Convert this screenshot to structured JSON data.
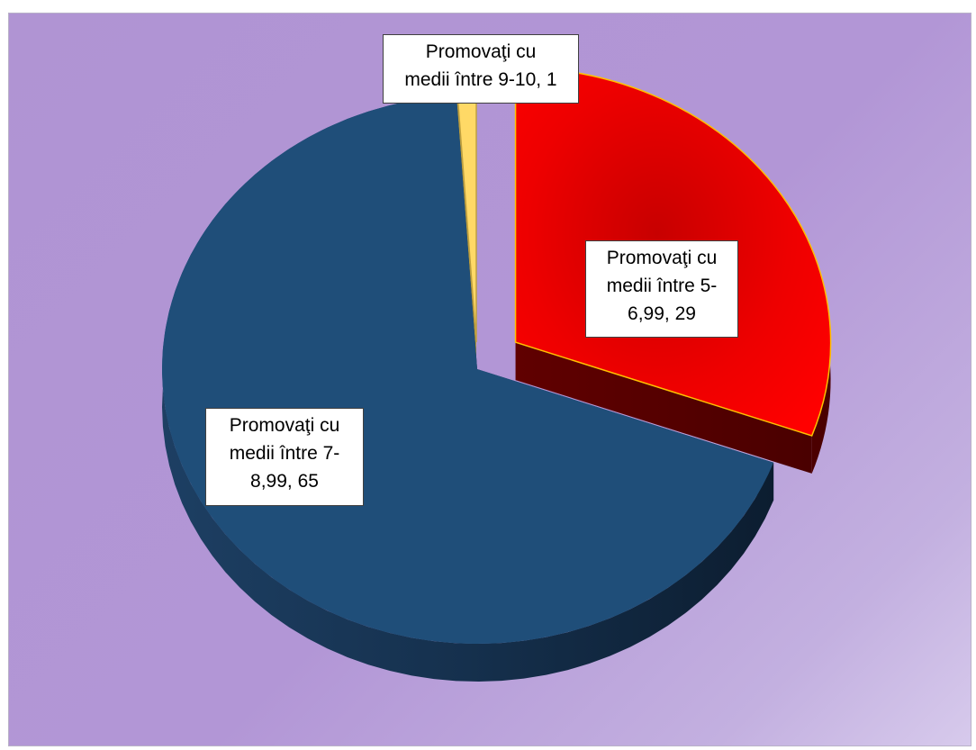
{
  "chart_data": {
    "type": "pie",
    "style": "3d-exploded",
    "categories": [
      "Promovaţi cu medii între 5-6,99",
      "Promovaţi cu medii între 7-8,99",
      "Promovaţi cu medii între 9-10"
    ],
    "values": [
      29,
      65,
      1
    ],
    "colors": [
      "#ff0000",
      "#1f4e79",
      "#ffd966"
    ],
    "data_labels": [
      "Promovaţi cu\nmedii între 5-\n6,99, 29",
      "Promovaţi cu\nmedii între 7-\n8,99, 65",
      "Promovaţi cu\nmedii între 9-10, 1"
    ],
    "legend": "none"
  }
}
